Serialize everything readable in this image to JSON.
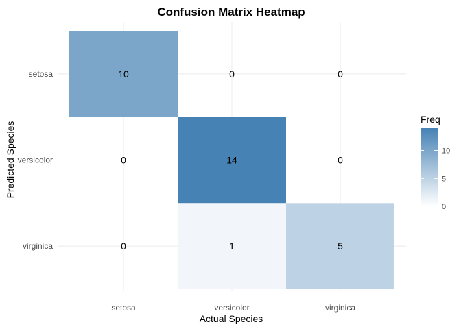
{
  "chart_data": {
    "type": "heatmap",
    "title": "Confusion Matrix Heatmap",
    "xlabel": "Actual Species",
    "ylabel": "Predicted Species",
    "x_categories": [
      "setosa",
      "versicolor",
      "virginica"
    ],
    "y_categories": [
      "setosa",
      "versicolor",
      "virginica"
    ],
    "cells": [
      {
        "actual": "setosa",
        "predicted": "setosa",
        "value": 10
      },
      {
        "actual": "versicolor",
        "predicted": "setosa",
        "value": 0
      },
      {
        "actual": "virginica",
        "predicted": "setosa",
        "value": 0
      },
      {
        "actual": "setosa",
        "predicted": "versicolor",
        "value": 0
      },
      {
        "actual": "versicolor",
        "predicted": "versicolor",
        "value": 14
      },
      {
        "actual": "virginica",
        "predicted": "versicolor",
        "value": 0
      },
      {
        "actual": "setosa",
        "predicted": "virginica",
        "value": 0
      },
      {
        "actual": "versicolor",
        "predicted": "virginica",
        "value": 1
      },
      {
        "actual": "virginica",
        "predicted": "virginica",
        "value": 5
      }
    ],
    "legend": {
      "title": "Freq",
      "ticks": [
        0,
        5,
        10
      ],
      "range": [
        0,
        14
      ],
      "low_color": "#ffffff",
      "high_color": "#4682b4",
      "placement": "right"
    },
    "grid": true
  }
}
